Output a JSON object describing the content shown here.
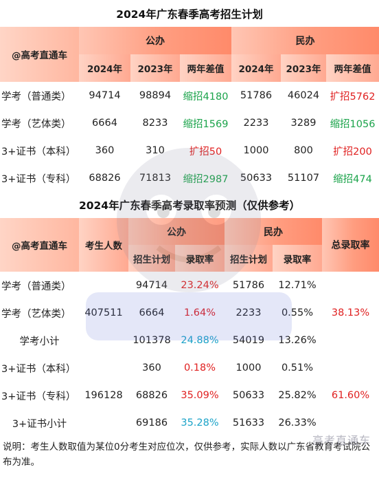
{
  "table1": {
    "title": "2024年广东春季高考招生计划",
    "corner": "@高考直通车",
    "group_public": "公办",
    "group_private": "民办",
    "sub_headers": [
      "2024年",
      "2023年",
      "两年差值",
      "2024年",
      "2023年",
      "两年差值"
    ],
    "rows": [
      {
        "name": "学考（普通类）",
        "pub_2024": "94714",
        "pub_2023": "98894",
        "pub_diff": "缩招4180",
        "pub_diff_color": "green",
        "pri_2024": "51786",
        "pri_2023": "46024",
        "pri_diff": "扩招5762",
        "pri_diff_color": "red"
      },
      {
        "name": "学考（艺体类）",
        "pub_2024": "6664",
        "pub_2023": "8233",
        "pub_diff": "缩招1569",
        "pub_diff_color": "green",
        "pri_2024": "2233",
        "pri_2023": "3289",
        "pri_diff": "缩招1056",
        "pri_diff_color": "green"
      },
      {
        "name": "3+证书（本科）",
        "pub_2024": "360",
        "pub_2023": "310",
        "pub_diff": "扩招50",
        "pub_diff_color": "red",
        "pri_2024": "1000",
        "pri_2023": "800",
        "pri_diff": "扩招200",
        "pri_diff_color": "red"
      },
      {
        "name": "3+证书（专科）",
        "pub_2024": "68826",
        "pub_2023": "71813",
        "pub_diff": "缩招2987",
        "pub_diff_color": "green",
        "pri_2024": "50633",
        "pri_2023": "51107",
        "pri_diff": "缩招474",
        "pri_diff_color": "green"
      }
    ]
  },
  "table2": {
    "title": "2024年广东春季高考录取率预测（仅供参考）",
    "corner": "@高考直通车",
    "examinees_header": "考生人数",
    "group_public": "公办",
    "group_private": "民办",
    "total_header": "总录取率",
    "sub_headers": [
      "招生计划",
      "录取率",
      "招生计划",
      "录取率"
    ],
    "rows": [
      {
        "name": "学考（普通类）",
        "pub_plan": "94714",
        "pub_rate": "23.24%",
        "pub_rate_color": "red",
        "pri_plan": "51786",
        "pri_rate": "12.71%"
      },
      {
        "name": "学考（艺体类）",
        "pub_plan": "6664",
        "pub_rate": "1.64%",
        "pub_rate_color": "red",
        "pri_plan": "2233",
        "pri_rate": "0.55%"
      },
      {
        "name": "学考小计",
        "pub_plan": "101378",
        "pub_rate": "24.88%",
        "pub_rate_color": "teal",
        "pri_plan": "54019",
        "pri_rate": "13.26%"
      },
      {
        "name": "3+证书（本科）",
        "pub_plan": "360",
        "pub_rate": "0.18%",
        "pub_rate_color": "red",
        "pri_plan": "1000",
        "pri_rate": "0.51%"
      },
      {
        "name": "3+证书（专科）",
        "pub_plan": "68826",
        "pub_rate": "35.09%",
        "pub_rate_color": "red",
        "pri_plan": "50633",
        "pri_rate": "25.82%"
      },
      {
        "name": "3+证书小计",
        "pub_plan": "69186",
        "pub_rate": "35.28%",
        "pub_rate_color": "teal",
        "pri_plan": "51633",
        "pri_rate": "26.33%"
      }
    ],
    "group_xuekao": {
      "examinees": "407511",
      "total_rate": "38.13%"
    },
    "group_zhengshu": {
      "examinees": "196128",
      "total_rate": "61.60%"
    }
  },
  "note": "说明：考生人数取值为某位0分考生对应位次，仅供参考，实际人数以广东省教育考试院公布为准。",
  "watermark": {
    "text": "高考直通车"
  }
}
